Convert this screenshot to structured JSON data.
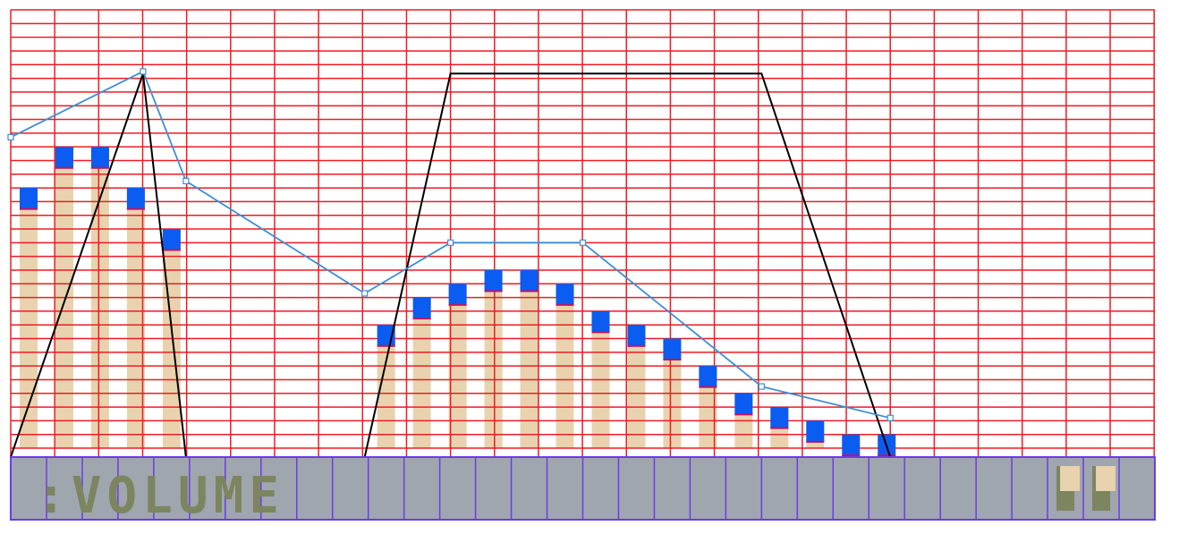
{
  "editor": {
    "mode_label": ":VOLUME",
    "colors": {
      "background": "#ffffff",
      "grid_line": "#ee1b24",
      "bar_fill": "#e8d3ae",
      "bar_cap": "#0b5cf0",
      "bar_cap_edge": "#c0126a",
      "envelope_curve": "#000000",
      "volume_line": "#3d8fd4",
      "lfo_line": "#3d8fd4",
      "strip_background": "#a0a6ae",
      "strip_divider": "#6a3ce8",
      "strip_text": "#7c8560",
      "indicator_a": "#7c8560",
      "indicator_b": "#e8d3ae"
    },
    "lane": {
      "columns": 64,
      "rows": 32,
      "max_value": 32
    },
    "steps": [
      {
        "index": 0,
        "value": 19
      },
      {
        "index": 1,
        "value": 22
      },
      {
        "index": 2,
        "value": 22
      },
      {
        "index": 3,
        "value": 19
      },
      {
        "index": 4,
        "value": 16
      },
      {
        "index": 10,
        "value": 9
      },
      {
        "index": 11,
        "value": 11
      },
      {
        "index": 12,
        "value": 12
      },
      {
        "index": 13,
        "value": 13
      },
      {
        "index": 14,
        "value": 13
      },
      {
        "index": 15,
        "value": 12
      },
      {
        "index": 16,
        "value": 10
      },
      {
        "index": 17,
        "value": 9
      },
      {
        "index": 18,
        "value": 8
      },
      {
        "index": 19,
        "value": 6
      },
      {
        "index": 20,
        "value": 4
      },
      {
        "index": 21,
        "value": 3
      },
      {
        "index": 22,
        "value": 2
      },
      {
        "index": 23,
        "value": 1
      },
      {
        "index": 24,
        "value": 1
      }
    ],
    "envelope_points": [
      {
        "step": 0,
        "value": 0
      },
      {
        "step": 3.7,
        "value": 28
      },
      {
        "step": 4.9,
        "value": 0
      },
      {
        "step": 9.9,
        "value": 0
      },
      {
        "step": 12.3,
        "value": 28
      },
      {
        "step": 21,
        "value": 28
      },
      {
        "step": 24.6,
        "value": 0
      }
    ],
    "volume_line_points": [
      {
        "step": 0,
        "value": 22.7
      },
      {
        "step": 3.7,
        "value": 27.5
      },
      {
        "step": 4.9,
        "value": 19.5
      },
      {
        "step": 9.9,
        "value": 11.3
      },
      {
        "step": 12.3,
        "value": 15
      },
      {
        "step": 16,
        "value": 15
      },
      {
        "step": 21,
        "value": 4.5
      },
      {
        "step": 24.6,
        "value": 2.2
      }
    ],
    "strip_cells": 32,
    "indicator_cells": [
      29,
      30
    ]
  }
}
